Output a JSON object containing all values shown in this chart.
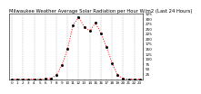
{
  "title": "Milwaukee Weather Average Solar Radiation per Hour W/m2 (Last 24 Hours)",
  "hours": [
    0,
    1,
    2,
    3,
    4,
    5,
    6,
    7,
    8,
    9,
    10,
    11,
    12,
    13,
    14,
    15,
    16,
    17,
    18,
    19,
    20,
    21,
    22,
    23
  ],
  "values": [
    0,
    0,
    0,
    0,
    0,
    0,
    1,
    3,
    20,
    70,
    150,
    270,
    310,
    260,
    240,
    280,
    230,
    160,
    80,
    20,
    2,
    0,
    0,
    0
  ],
  "line_color": "#ff0000",
  "marker_color": "#000000",
  "bg_color": "#ffffff",
  "grid_color": "#888888",
  "ylim": [
    0,
    325
  ],
  "ytick_values": [
    25,
    50,
    75,
    100,
    125,
    150,
    175,
    200,
    225,
    250,
    275,
    300,
    325
  ],
  "title_fontsize": 3.8,
  "tick_fontsize": 3.0
}
